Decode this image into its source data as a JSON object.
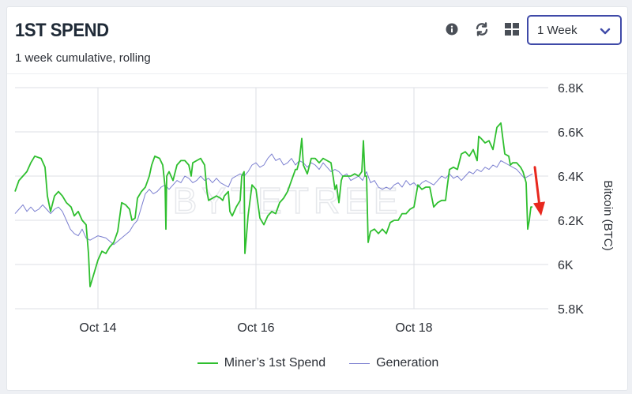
{
  "header": {
    "title": "1ST SPEND",
    "subtitle": "1 week cumulative, rolling",
    "icons": [
      "info-icon",
      "refresh-icon",
      "grid-icon"
    ],
    "period_select": {
      "value": "1 Week"
    }
  },
  "watermark": "BYTETREE",
  "colors": {
    "spend": "#2fbf2f",
    "generation": "#7b7fd0",
    "arrow": "#e8281e",
    "select_border": "#3f4aa8"
  },
  "chart_data": {
    "type": "line",
    "ylabel": "Bitcoin (BTC)",
    "ylim": [
      5800,
      6800
    ],
    "yticks": [
      "6.8K",
      "6.6K",
      "6.4K",
      "6.2K",
      "6K",
      "5.8K"
    ],
    "ytick_values": [
      6800,
      6600,
      6400,
      6200,
      6000,
      5800
    ],
    "xlim": [
      12.95,
      19.7
    ],
    "xticks": [
      "Oct 14",
      "Oct 16",
      "Oct 18"
    ],
    "xtick_values": [
      14,
      16,
      18
    ],
    "grid": true,
    "legend_position": "bottom",
    "series": [
      {
        "name": "Miner’s 1st Spend",
        "color": "#2fbf2f",
        "points": [
          [
            12.95,
            6330
          ],
          [
            13.0,
            6380
          ],
          [
            13.1,
            6420
          ],
          [
            13.15,
            6460
          ],
          [
            13.2,
            6490
          ],
          [
            13.28,
            6480
          ],
          [
            13.33,
            6440
          ],
          [
            13.36,
            6310
          ],
          [
            13.4,
            6240
          ],
          [
            13.45,
            6310
          ],
          [
            13.5,
            6330
          ],
          [
            13.55,
            6310
          ],
          [
            13.6,
            6280
          ],
          [
            13.66,
            6260
          ],
          [
            13.7,
            6220
          ],
          [
            13.75,
            6240
          ],
          [
            13.8,
            6200
          ],
          [
            13.85,
            6180
          ],
          [
            13.88,
            6050
          ],
          [
            13.9,
            5900
          ],
          [
            13.95,
            5960
          ],
          [
            14.0,
            6020
          ],
          [
            14.05,
            6060
          ],
          [
            14.1,
            6050
          ],
          [
            14.15,
            6080
          ],
          [
            14.2,
            6100
          ],
          [
            14.25,
            6150
          ],
          [
            14.3,
            6280
          ],
          [
            14.35,
            6270
          ],
          [
            14.4,
            6250
          ],
          [
            14.43,
            6200
          ],
          [
            14.47,
            6210
          ],
          [
            14.5,
            6300
          ],
          [
            14.55,
            6330
          ],
          [
            14.6,
            6350
          ],
          [
            14.65,
            6400
          ],
          [
            14.68,
            6450
          ],
          [
            14.72,
            6490
          ],
          [
            14.78,
            6480
          ],
          [
            14.82,
            6450
          ],
          [
            14.85,
            6350
          ],
          [
            14.86,
            6160
          ],
          [
            14.87,
            6400
          ],
          [
            14.9,
            6420
          ],
          [
            14.95,
            6380
          ],
          [
            15.0,
            6450
          ],
          [
            15.05,
            6470
          ],
          [
            15.1,
            6470
          ],
          [
            15.15,
            6450
          ],
          [
            15.18,
            6400
          ],
          [
            15.2,
            6460
          ],
          [
            15.25,
            6470
          ],
          [
            15.3,
            6480
          ],
          [
            15.35,
            6450
          ],
          [
            15.38,
            6330
          ],
          [
            15.4,
            6290
          ],
          [
            15.45,
            6300
          ],
          [
            15.5,
            6310
          ],
          [
            15.55,
            6300
          ],
          [
            15.58,
            6290
          ],
          [
            15.6,
            6310
          ],
          [
            15.65,
            6330
          ],
          [
            15.67,
            6240
          ],
          [
            15.7,
            6220
          ],
          [
            15.75,
            6260
          ],
          [
            15.8,
            6290
          ],
          [
            15.82,
            6400
          ],
          [
            15.85,
            6420
          ],
          [
            15.86,
            6050
          ],
          [
            15.88,
            6130
          ],
          [
            15.9,
            6220
          ],
          [
            15.95,
            6360
          ],
          [
            16.0,
            6340
          ],
          [
            16.05,
            6210
          ],
          [
            16.1,
            6180
          ],
          [
            16.15,
            6220
          ],
          [
            16.2,
            6240
          ],
          [
            16.25,
            6230
          ],
          [
            16.3,
            6280
          ],
          [
            16.35,
            6300
          ],
          [
            16.4,
            6330
          ],
          [
            16.45,
            6380
          ],
          [
            16.5,
            6430
          ],
          [
            16.52,
            6430
          ],
          [
            16.55,
            6470
          ],
          [
            16.58,
            6570
          ],
          [
            16.6,
            6450
          ],
          [
            16.65,
            6410
          ],
          [
            16.7,
            6480
          ],
          [
            16.75,
            6480
          ],
          [
            16.8,
            6460
          ],
          [
            16.85,
            6480
          ],
          [
            16.9,
            6470
          ],
          [
            16.95,
            6460
          ],
          [
            16.98,
            6390
          ],
          [
            17.0,
            6340
          ],
          [
            17.02,
            6360
          ],
          [
            17.05,
            6280
          ],
          [
            17.08,
            6380
          ],
          [
            17.1,
            6400
          ],
          [
            17.15,
            6400
          ],
          [
            17.2,
            6400
          ],
          [
            17.25,
            6410
          ],
          [
            17.3,
            6400
          ],
          [
            17.34,
            6420
          ],
          [
            17.36,
            6560
          ],
          [
            17.38,
            6400
          ],
          [
            17.4,
            6400
          ],
          [
            17.42,
            6100
          ],
          [
            17.45,
            6150
          ],
          [
            17.5,
            6160
          ],
          [
            17.55,
            6140
          ],
          [
            17.6,
            6160
          ],
          [
            17.65,
            6140
          ],
          [
            17.68,
            6170
          ],
          [
            17.7,
            6190
          ],
          [
            17.75,
            6200
          ],
          [
            17.8,
            6200
          ],
          [
            17.85,
            6230
          ],
          [
            17.9,
            6230
          ],
          [
            17.95,
            6250
          ],
          [
            18.0,
            6260
          ],
          [
            18.05,
            6360
          ],
          [
            18.1,
            6340
          ],
          [
            18.15,
            6350
          ],
          [
            18.2,
            6350
          ],
          [
            18.25,
            6260
          ],
          [
            18.3,
            6280
          ],
          [
            18.35,
            6290
          ],
          [
            18.4,
            6290
          ],
          [
            18.42,
            6350
          ],
          [
            18.45,
            6430
          ],
          [
            18.5,
            6440
          ],
          [
            18.55,
            6430
          ],
          [
            18.6,
            6500
          ],
          [
            18.65,
            6510
          ],
          [
            18.7,
            6490
          ],
          [
            18.75,
            6520
          ],
          [
            18.8,
            6470
          ],
          [
            18.82,
            6580
          ],
          [
            18.85,
            6570
          ],
          [
            18.9,
            6550
          ],
          [
            18.95,
            6560
          ],
          [
            19.0,
            6520
          ],
          [
            19.05,
            6620
          ],
          [
            19.1,
            6640
          ],
          [
            19.15,
            6500
          ],
          [
            19.2,
            6490
          ],
          [
            19.22,
            6450
          ],
          [
            19.25,
            6460
          ],
          [
            19.3,
            6460
          ],
          [
            19.35,
            6440
          ],
          [
            19.38,
            6420
          ],
          [
            19.42,
            6370
          ],
          [
            19.44,
            6160
          ],
          [
            19.46,
            6200
          ],
          [
            19.48,
            6260
          ],
          [
            19.5,
            6260
          ]
        ]
      },
      {
        "name": "Generation",
        "color": "#7b7fd0",
        "points": [
          [
            12.95,
            6230
          ],
          [
            13.0,
            6250
          ],
          [
            13.05,
            6270
          ],
          [
            13.1,
            6240
          ],
          [
            13.15,
            6260
          ],
          [
            13.2,
            6240
          ],
          [
            13.25,
            6250
          ],
          [
            13.3,
            6270
          ],
          [
            13.35,
            6250
          ],
          [
            13.4,
            6230
          ],
          [
            13.45,
            6250
          ],
          [
            13.5,
            6260
          ],
          [
            13.55,
            6240
          ],
          [
            13.6,
            6200
          ],
          [
            13.65,
            6160
          ],
          [
            13.7,
            6140
          ],
          [
            13.75,
            6130
          ],
          [
            13.8,
            6160
          ],
          [
            13.85,
            6120
          ],
          [
            13.9,
            6110
          ],
          [
            14.0,
            6130
          ],
          [
            14.1,
            6120
          ],
          [
            14.2,
            6090
          ],
          [
            14.3,
            6120
          ],
          [
            14.4,
            6150
          ],
          [
            14.45,
            6180
          ],
          [
            14.5,
            6200
          ],
          [
            14.55,
            6260
          ],
          [
            14.6,
            6320
          ],
          [
            14.65,
            6340
          ],
          [
            14.7,
            6320
          ],
          [
            14.75,
            6330
          ],
          [
            14.8,
            6350
          ],
          [
            14.85,
            6360
          ],
          [
            14.9,
            6340
          ],
          [
            14.95,
            6360
          ],
          [
            15.0,
            6380
          ],
          [
            15.05,
            6370
          ],
          [
            15.1,
            6400
          ],
          [
            15.15,
            6390
          ],
          [
            15.2,
            6370
          ],
          [
            15.25,
            6380
          ],
          [
            15.3,
            6400
          ],
          [
            15.35,
            6380
          ],
          [
            15.4,
            6390
          ],
          [
            15.45,
            6370
          ],
          [
            15.5,
            6390
          ],
          [
            15.55,
            6370
          ],
          [
            15.6,
            6360
          ],
          [
            15.65,
            6350
          ],
          [
            15.7,
            6390
          ],
          [
            15.75,
            6400
          ],
          [
            15.8,
            6410
          ],
          [
            15.85,
            6400
          ],
          [
            15.9,
            6420
          ],
          [
            15.95,
            6450
          ],
          [
            16.0,
            6460
          ],
          [
            16.05,
            6440
          ],
          [
            16.1,
            6450
          ],
          [
            16.15,
            6480
          ],
          [
            16.2,
            6500
          ],
          [
            16.25,
            6470
          ],
          [
            16.3,
            6480
          ],
          [
            16.35,
            6450
          ],
          [
            16.4,
            6460
          ],
          [
            16.45,
            6480
          ],
          [
            16.5,
            6450
          ],
          [
            16.55,
            6470
          ],
          [
            16.6,
            6460
          ],
          [
            16.65,
            6440
          ],
          [
            16.7,
            6460
          ],
          [
            16.75,
            6450
          ],
          [
            16.8,
            6430
          ],
          [
            16.85,
            6460
          ],
          [
            16.9,
            6440
          ],
          [
            16.95,
            6420
          ],
          [
            17.0,
            6430
          ],
          [
            17.05,
            6420
          ],
          [
            17.1,
            6400
          ],
          [
            17.15,
            6410
          ],
          [
            17.2,
            6380
          ],
          [
            17.25,
            6390
          ],
          [
            17.3,
            6400
          ],
          [
            17.35,
            6380
          ],
          [
            17.4,
            6420
          ],
          [
            17.45,
            6370
          ],
          [
            17.5,
            6380
          ],
          [
            17.55,
            6350
          ],
          [
            17.6,
            6340
          ],
          [
            17.65,
            6350
          ],
          [
            17.7,
            6340
          ],
          [
            17.75,
            6360
          ],
          [
            17.8,
            6370
          ],
          [
            17.85,
            6350
          ],
          [
            17.9,
            6380
          ],
          [
            17.95,
            6360
          ],
          [
            18.0,
            6370
          ],
          [
            18.05,
            6350
          ],
          [
            18.1,
            6370
          ],
          [
            18.15,
            6380
          ],
          [
            18.2,
            6370
          ],
          [
            18.25,
            6360
          ],
          [
            18.3,
            6380
          ],
          [
            18.35,
            6400
          ],
          [
            18.4,
            6390
          ],
          [
            18.45,
            6410
          ],
          [
            18.5,
            6390
          ],
          [
            18.55,
            6400
          ],
          [
            18.6,
            6380
          ],
          [
            18.65,
            6400
          ],
          [
            18.7,
            6420
          ],
          [
            18.75,
            6410
          ],
          [
            18.8,
            6430
          ],
          [
            18.85,
            6420
          ],
          [
            18.9,
            6440
          ],
          [
            18.95,
            6430
          ],
          [
            19.0,
            6450
          ],
          [
            19.05,
            6440
          ],
          [
            19.1,
            6470
          ],
          [
            19.15,
            6460
          ],
          [
            19.2,
            6450
          ],
          [
            19.25,
            6440
          ],
          [
            19.3,
            6430
          ],
          [
            19.35,
            6410
          ],
          [
            19.4,
            6390
          ],
          [
            19.45,
            6400
          ],
          [
            19.5,
            6410
          ]
        ]
      }
    ]
  }
}
